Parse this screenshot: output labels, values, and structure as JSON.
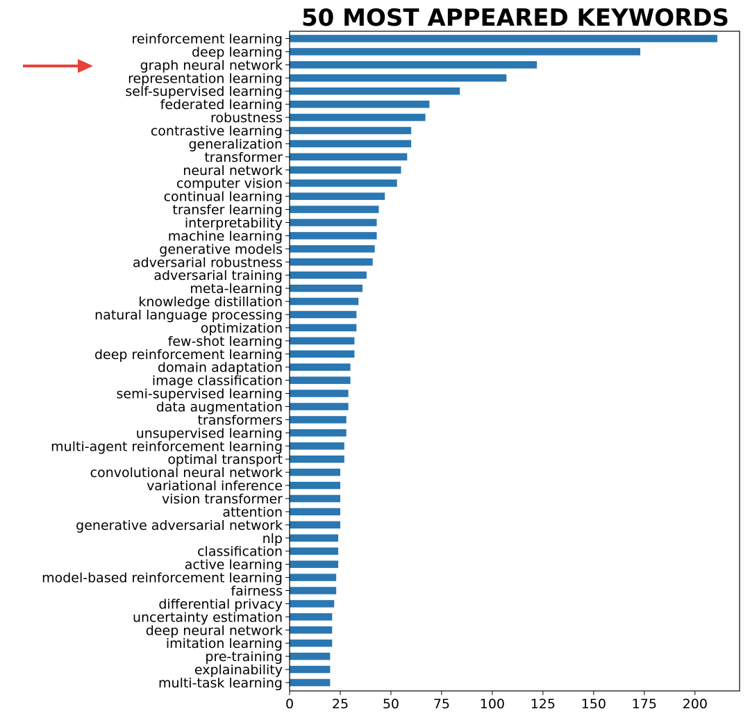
{
  "chart_data": {
    "type": "bar",
    "orientation": "horizontal",
    "title": "50 MOST APPEARED KEYWORDS",
    "xlabel": "",
    "ylabel": "",
    "xlim": [
      0,
      222
    ],
    "x_ticks": [
      "0",
      "25",
      "50",
      "75",
      "100",
      "125",
      "150",
      "175",
      "200"
    ],
    "grid": false,
    "bar_color": "#2a77b2",
    "highlight_marker": {
      "type": "arrow",
      "color": "#e8413a",
      "points_to": "graph neural network"
    },
    "categories": [
      "reinforcement learning",
      "deep learning",
      "graph neural network",
      "representation learning",
      "self-supervised learning",
      "federated learning",
      "robustness",
      "contrastive learning",
      "generalization",
      "transformer",
      "neural network",
      "computer vision",
      "continual learning",
      "transfer learning",
      "interpretability",
      "machine learning",
      "generative models",
      "adversarial robustness",
      "adversarial training",
      "meta-learning",
      "knowledge distillation",
      "natural language processing",
      "optimization",
      "few-shot learning",
      "deep reinforcement learning",
      "domain adaptation",
      "image classification",
      "semi-supervised learning",
      "data augmentation",
      "transformers",
      "unsupervised learning",
      "multi-agent reinforcement learning",
      "optimal transport",
      "convolutional neural network",
      "variational inference",
      "vision transformer",
      "attention",
      "generative adversarial network",
      "nlp",
      "classification",
      "active learning",
      "model-based reinforcement learning",
      "fairness",
      "differential privacy",
      "uncertainty estimation",
      "deep neural network",
      "imitation learning",
      "pre-training",
      "explainability",
      "multi-task learning"
    ],
    "values": [
      211,
      173,
      122,
      107,
      84,
      69,
      67,
      60,
      60,
      58,
      55,
      53,
      47,
      44,
      43,
      43,
      42,
      41,
      38,
      36,
      34,
      33,
      33,
      32,
      32,
      30,
      30,
      29,
      29,
      28,
      28,
      27,
      27,
      25,
      25,
      25,
      25,
      25,
      24,
      24,
      24,
      23,
      23,
      22,
      21,
      21,
      21,
      20,
      20,
      20
    ]
  }
}
